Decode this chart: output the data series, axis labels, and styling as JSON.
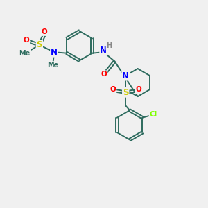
{
  "background_color": "#f0f0f0",
  "bond_color": "#2d6b5e",
  "atom_colors": {
    "N": "#0000ff",
    "O": "#ff0000",
    "S": "#cccc00",
    "Cl": "#7fff00",
    "H": "#888888",
    "C": "#2d6b5e"
  },
  "figsize": [
    3.0,
    3.0
  ],
  "dpi": 100
}
